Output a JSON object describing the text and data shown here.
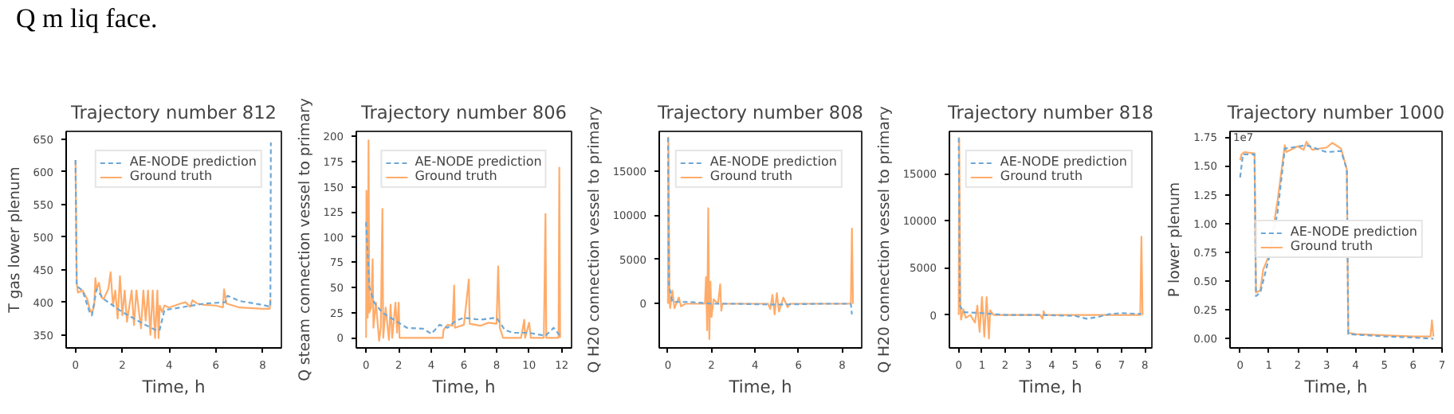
{
  "chart_data": [
    {
      "type": "line",
      "title": "Trajectory number 812",
      "xlabel": "Time, h",
      "ylabel": "T gas lower plenum",
      "annotations": [
        "Q m liq face."
      ],
      "xlim": [
        -0.4,
        8.8
      ],
      "xticks": [
        0,
        2,
        4,
        6,
        8
      ],
      "ylim": [
        330,
        662
      ],
      "yticks": [
        350,
        400,
        450,
        500,
        550,
        600,
        650
      ],
      "legend": "top right",
      "grid": false,
      "series": [
        {
          "name": "AE-NODE prediction",
          "color": "#6fa8d6",
          "line_style": "dashed",
          "x": [
            0,
            0.05,
            0.3,
            0.6,
            0.7,
            0.9,
            1.2,
            1.6,
            2.0,
            2.5,
            3.0,
            3.5,
            3.6,
            3.8,
            4.5,
            5.5,
            6.4,
            6.5,
            7.0,
            8.0,
            8.33,
            8.35
          ],
          "values": [
            618,
            425,
            418,
            385,
            380,
            420,
            405,
            395,
            385,
            375,
            365,
            356,
            358,
            388,
            392,
            398,
            400,
            410,
            402,
            396,
            393,
            645
          ]
        },
        {
          "name": "Ground truth",
          "color": "#ffac6a",
          "line_style": "solid",
          "x": [
            0,
            0.05,
            0.1,
            0.3,
            0.5,
            0.6,
            0.7,
            0.8,
            0.85,
            0.9,
            1.0,
            1.1,
            1.2,
            1.4,
            1.5,
            1.6,
            1.7,
            1.8,
            1.9,
            2.0,
            2.1,
            2.2,
            2.4,
            2.5,
            2.6,
            2.8,
            2.9,
            3.0,
            3.1,
            3.2,
            3.3,
            3.4,
            3.5,
            3.55,
            3.6,
            3.7,
            3.8,
            4.0,
            4.5,
            4.7,
            4.9,
            5.0,
            5.2,
            5.5,
            6.0,
            6.3,
            6.35,
            6.45,
            7.0,
            8.0,
            8.3,
            8.33
          ],
          "values": [
            618,
            430,
            415,
            418,
            405,
            390,
            383,
            395,
            437,
            420,
            430,
            408,
            405,
            420,
            446,
            395,
            418,
            375,
            440,
            380,
            418,
            370,
            418,
            365,
            418,
            360,
            418,
            372,
            418,
            350,
            418,
            345,
            418,
            345,
            395,
            385,
            395,
            392,
            398,
            400,
            393,
            403,
            398,
            396,
            395,
            392,
            420,
            398,
            392,
            390,
            390,
            405
          ]
        }
      ]
    },
    {
      "type": "line",
      "title": "Trajectory number 806",
      "xlabel": "Time, h",
      "ylabel": "Q steam connection vessel to primary",
      "xlim": [
        -0.6,
        12.6
      ],
      "xticks": [
        0,
        2,
        4,
        6,
        8,
        10,
        12
      ],
      "ylim": [
        -10,
        205
      ],
      "yticks": [
        0,
        25,
        50,
        75,
        100,
        125,
        150,
        175,
        200
      ],
      "legend": "top",
      "grid": false,
      "series": [
        {
          "name": "AE-NODE prediction",
          "color": "#6fa8d6",
          "line_style": "dashed",
          "x": [
            0,
            0.2,
            0.5,
            1.0,
            1.5,
            2.0,
            2.5,
            3.5,
            4.0,
            4.5,
            5.0,
            5.5,
            6.0,
            7.0,
            8.0,
            8.5,
            9.0,
            10.0,
            11.0,
            11.5,
            11.9
          ],
          "values": [
            115,
            50,
            35,
            25,
            20,
            15,
            10,
            9,
            4,
            13,
            10,
            17,
            20,
            18,
            20,
            8,
            5,
            5,
            2,
            10,
            2
          ]
        },
        {
          "name": "Ground truth",
          "color": "#ffac6a",
          "line_style": "solid",
          "x": [
            0,
            0.02,
            0.1,
            0.15,
            0.2,
            0.3,
            0.4,
            0.45,
            0.6,
            0.8,
            0.9,
            1.0,
            1.05,
            1.2,
            1.4,
            1.5,
            1.6,
            1.8,
            1.9,
            2.0,
            2.05,
            3.0,
            4.7,
            4.75,
            5.0,
            5.3,
            5.4,
            5.45,
            6.0,
            6.3,
            6.35,
            7.0,
            7.5,
            8.0,
            8.1,
            8.2,
            8.4,
            9.5,
            9.7,
            9.75,
            10.0,
            10.1,
            10.9,
            11.0,
            11.05,
            11.8,
            11.85,
            11.9
          ],
          "values": [
            0,
            146,
            20,
            196,
            25,
            30,
            78,
            10,
            35,
            -3,
            10,
            128,
            0,
            30,
            -2,
            33,
            0,
            35,
            5,
            35,
            0,
            0,
            0,
            8,
            13,
            12,
            52,
            10,
            13,
            58,
            14,
            12,
            15,
            14,
            71,
            10,
            0,
            0,
            18,
            0,
            15,
            0,
            0,
            123,
            0,
            0,
            169,
            0
          ]
        }
      ]
    },
    {
      "type": "line",
      "title": "Trajectory number 808",
      "xlabel": "Time, h",
      "ylabel": "Q H20 connection vessel to primary",
      "xlim": [
        -0.4,
        8.9
      ],
      "xticks": [
        0,
        2,
        4,
        6,
        8
      ],
      "ylim": [
        -5000,
        19500
      ],
      "yticks": [
        0,
        5000,
        10000,
        15000
      ],
      "legend": "top right",
      "grid": false,
      "series": [
        {
          "name": "AE-NODE prediction",
          "color": "#6fa8d6",
          "line_style": "dashed",
          "x": [
            0,
            0.05,
            0.2,
            1.0,
            2.0,
            3.0,
            5.0,
            7.0,
            8.4,
            8.45
          ],
          "values": [
            18800,
            2000,
            200,
            200,
            0,
            0,
            -100,
            0,
            0,
            -1200
          ]
        },
        {
          "name": "Ground truth",
          "color": "#ffac6a",
          "line_style": "solid",
          "x": [
            0,
            0.02,
            0.07,
            0.1,
            0.2,
            0.3,
            0.5,
            0.6,
            0.8,
            1.7,
            1.75,
            1.8,
            1.85,
            1.9,
            1.95,
            2.0,
            2.1,
            2.3,
            2.4,
            2.45,
            2.5,
            4.6,
            4.7,
            4.8,
            4.9,
            5.0,
            5.1,
            5.3,
            5.5,
            5.6,
            8.4,
            8.45,
            8.5
          ],
          "values": [
            0,
            18800,
            500,
            -500,
            1500,
            -500,
            700,
            -300,
            0,
            0,
            3000,
            -3000,
            10800,
            -4000,
            2500,
            -1500,
            500,
            0,
            2200,
            -800,
            0,
            0,
            -600,
            1000,
            -1200,
            1200,
            -900,
            700,
            -400,
            0,
            0,
            8500,
            0
          ]
        }
      ]
    },
    {
      "type": "line",
      "title": "Trajectory number 818",
      "xlabel": "Time, h",
      "ylabel": "Q H20 connection vessel to primary",
      "xlim": [
        -0.4,
        8.3
      ],
      "xticks": [
        0,
        1,
        2,
        3,
        4,
        5,
        6,
        7,
        8
      ],
      "ylim": [
        -3500,
        19500
      ],
      "yticks": [
        0,
        5000,
        10000,
        15000
      ],
      "legend": "top right",
      "grid": false,
      "series": [
        {
          "name": "AE-NODE prediction",
          "color": "#6fa8d6",
          "line_style": "dashed",
          "x": [
            0,
            0.05,
            0.2,
            1.0,
            2.0,
            3.5,
            5.0,
            5.5,
            6.0,
            6.5,
            7.0,
            7.85
          ],
          "values": [
            18800,
            1000,
            300,
            200,
            0,
            0,
            -100,
            -400,
            -200,
            100,
            200,
            100
          ]
        },
        {
          "name": "Ground truth",
          "color": "#ffac6a",
          "line_style": "solid",
          "x": [
            0,
            0.02,
            0.07,
            0.1,
            0.2,
            0.3,
            0.5,
            0.7,
            0.8,
            0.9,
            1.0,
            1.1,
            1.2,
            1.3,
            1.35,
            1.5,
            3.5,
            3.6,
            3.65,
            3.7,
            7.8,
            7.85,
            7.9
          ],
          "values": [
            0,
            18800,
            1500,
            -500,
            600,
            -300,
            0,
            -800,
            1000,
            -1800,
            1900,
            -2300,
            1900,
            -2500,
            500,
            0,
            0,
            -400,
            400,
            0,
            0,
            8300,
            0
          ]
        }
      ]
    },
    {
      "type": "line",
      "title": "Trajectory number 1000",
      "xlabel": "Time, h",
      "ylabel": "P lower plenum",
      "annotations": [
        "1e7"
      ],
      "xlim": [
        -0.35,
        7.0
      ],
      "xticks": [
        0,
        1,
        2,
        3,
        4,
        5,
        6,
        7
      ],
      "ylim": [
        -0.08,
        1.8
      ],
      "yticks": [
        {
          "value": 0,
          "label": "0.00"
        },
        {
          "value": 0.25,
          "label": "0.25"
        },
        {
          "value": 0.5,
          "label": "0.50"
        },
        {
          "value": 0.75,
          "label": "0.75"
        },
        {
          "value": 1,
          "label": "1.00"
        },
        {
          "value": 1.25,
          "label": "1.25"
        },
        {
          "value": 1.5,
          "label": "1.50"
        },
        {
          "value": 1.75,
          "label": "1.75"
        }
      ],
      "legend": "right",
      "grid": false,
      "series": [
        {
          "name": "AE-NODE prediction",
          "color": "#6fa8d6",
          "line_style": "dashed",
          "x": [
            0,
            0.1,
            0.5,
            0.55,
            0.7,
            1.0,
            1.3,
            1.55,
            2.3,
            3.0,
            3.5,
            3.7,
            3.75,
            5.0,
            6.0,
            6.7
          ],
          "values": [
            1.4,
            1.6,
            1.6,
            0.37,
            0.4,
            0.7,
            1.1,
            1.65,
            1.68,
            1.62,
            1.63,
            1.47,
            0.04,
            0.02,
            0.01,
            0.0
          ]
        },
        {
          "name": "Ground truth",
          "color": "#ffac6a",
          "line_style": "solid",
          "x": [
            0,
            0.05,
            0.15,
            0.5,
            0.55,
            0.7,
            0.8,
            1.0,
            1.3,
            1.55,
            1.6,
            2.0,
            2.2,
            2.3,
            2.5,
            3.0,
            3.2,
            3.5,
            3.7,
            3.75,
            4.0,
            5.0,
            6.0,
            6.6,
            6.65,
            6.7
          ],
          "values": [
            1.55,
            1.6,
            1.62,
            1.61,
            0.4,
            0.42,
            0.6,
            0.72,
            1.2,
            1.68,
            1.62,
            1.67,
            1.64,
            1.71,
            1.64,
            1.66,
            1.7,
            1.65,
            1.47,
            0.05,
            0.04,
            0.03,
            0.02,
            0.02,
            0.16,
            0.02
          ]
        }
      ]
    }
  ]
}
